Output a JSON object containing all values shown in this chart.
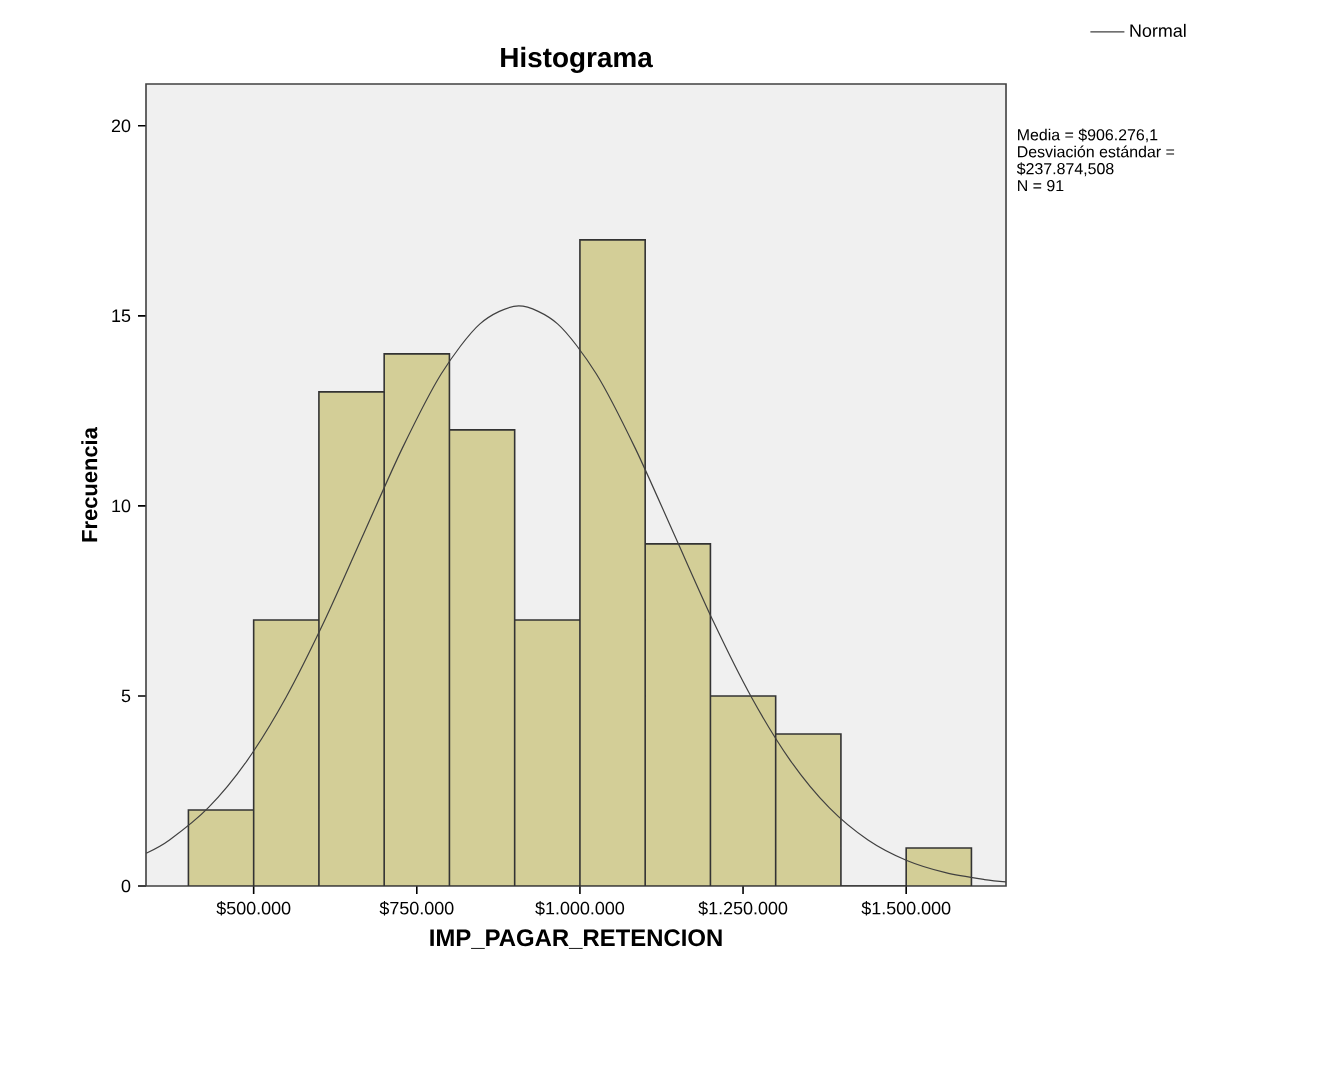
{
  "chart_data": {
    "type": "histogram",
    "title": "Histograma",
    "xlabel": "IMP_PAGAR_RETENCION",
    "ylabel": "Frecuencia",
    "bins": [
      400000,
      500000,
      600000,
      700000,
      800000,
      900000,
      1000000,
      1100000,
      1200000,
      1300000,
      1400000,
      1500000,
      1600000
    ],
    "values": [
      2,
      7,
      13,
      14,
      12,
      7,
      17,
      9,
      5,
      4,
      0,
      1
    ],
    "color": "#d3ce97",
    "series": [
      {
        "name": "Normal",
        "type": "line",
        "color": "#404040",
        "marker": "none",
        "x": [
          335377,
          371059,
          430527,
          489996,
          549464,
          608933,
          668402,
          727870,
          787339,
          846808,
          906276,
          965745,
          1025214,
          1084682,
          1144151,
          1203619,
          1263088,
          1322557,
          1382025,
          1441494,
          1500962,
          1560431,
          1619900,
          1653000
        ],
        "values": [
          0.86,
          1.21,
          2.06,
          3.3,
          4.96,
          6.99,
          9.26,
          11.52,
          13.47,
          14.79,
          15.26,
          14.79,
          13.47,
          11.52,
          9.26,
          6.99,
          4.96,
          3.3,
          2.06,
          1.21,
          0.67,
          0.35,
          0.17,
          0.11
        ]
      }
    ],
    "xlim": [
      335000,
      1653000
    ],
    "ylim": [
      0,
      21.1
    ],
    "xticks": [
      {
        "value": 500000,
        "label": "$500.000"
      },
      {
        "value": 750000,
        "label": "$750.000"
      },
      {
        "value": 1000000,
        "label": "$1.000.000"
      },
      {
        "value": 1250000,
        "label": "$1.250.000"
      },
      {
        "value": 1500000,
        "label": "$1.500.000"
      }
    ],
    "yticks": [
      0,
      5,
      10,
      15,
      20
    ],
    "legend": "top right",
    "annotations": [
      "Media = $906.276,1",
      "Desviación estándar = $237.874,508",
      "N = 91"
    ]
  }
}
